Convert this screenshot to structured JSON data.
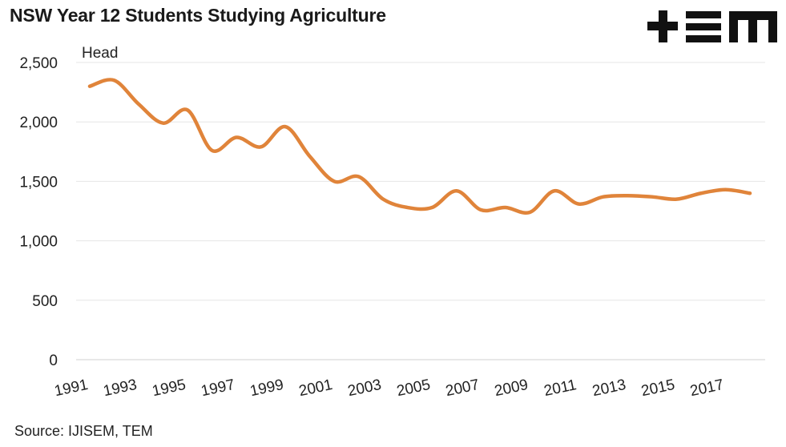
{
  "header": {
    "title": "NSW Year 12 Students Studying Agriculture"
  },
  "logo": {
    "text": "+EM",
    "icon": "tem-logo-icon",
    "color": "#111111"
  },
  "footer": {
    "source": "Source: IJISEM, TEM"
  },
  "chart_data": {
    "type": "line",
    "title": "NSW Year 12 Students Studying Agriculture",
    "unit_label": "Head",
    "xlabel": "",
    "ylabel": "",
    "ylim": [
      0,
      2500
    ],
    "yticks": [
      0,
      500,
      1000,
      1500,
      2000,
      2500
    ],
    "ytick_labels": [
      "0",
      "500",
      "1,000",
      "1,500",
      "2,000",
      "2,500"
    ],
    "xticks": [
      1991,
      1993,
      1995,
      1997,
      1999,
      2001,
      2003,
      2005,
      2007,
      2009,
      2011,
      2013,
      2015,
      2017
    ],
    "xtick_labels": [
      "1991",
      "1993",
      "1995",
      "1997",
      "1999",
      "2001",
      "2003",
      "2005",
      "2007",
      "2009",
      "2011",
      "2013",
      "2015",
      "2017"
    ],
    "grid": "horizontal",
    "legend": "none",
    "line_color": "#E0843A",
    "series": [
      {
        "x": [
          1991,
          1992,
          1993,
          1994,
          1995,
          1996,
          1997,
          1998,
          1999,
          2000,
          2001,
          2002,
          2003,
          2004,
          2005,
          2006,
          2007,
          2008,
          2009,
          2010,
          2011,
          2012,
          2013,
          2014,
          2015,
          2016,
          2017,
          2018
        ],
        "values": [
          2300,
          2350,
          2150,
          1990,
          2100,
          1760,
          1870,
          1790,
          1960,
          1710,
          1500,
          1540,
          1350,
          1280,
          1280,
          1420,
          1260,
          1280,
          1240,
          1420,
          1310,
          1370,
          1380,
          1370,
          1350,
          1400,
          1430,
          1400
        ]
      }
    ]
  }
}
